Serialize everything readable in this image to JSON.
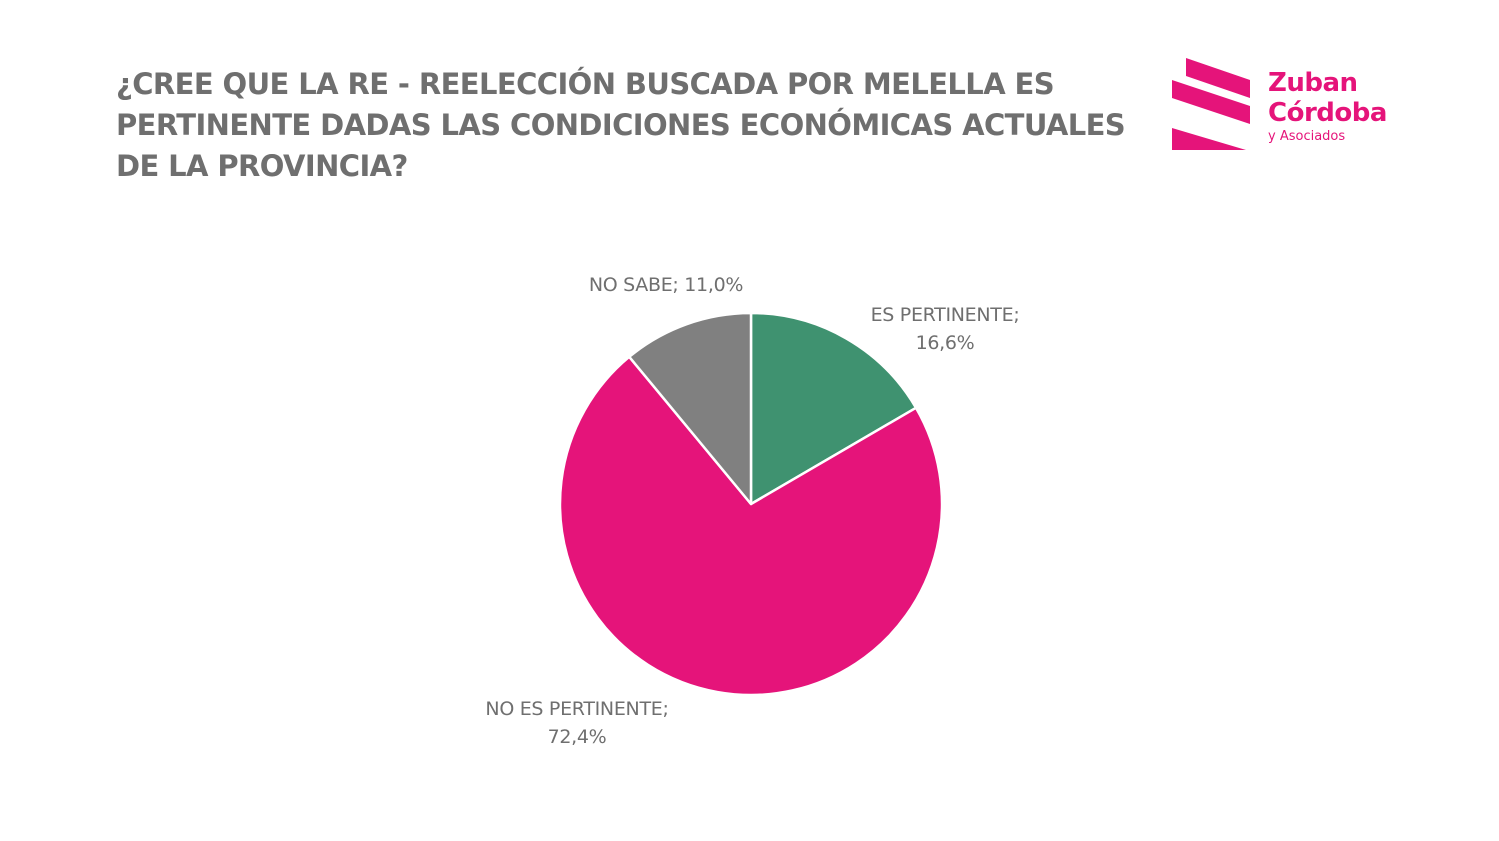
{
  "header": {
    "title": "¿CREE QUE LA RE - REELECCIÓN BUSCADA POR MELELLA ES PERTINENTE DADAS LAS CONDICIONES ECONÓMICAS ACTUALES DE LA PROVINCIA?"
  },
  "logo": {
    "line1": "Zuban",
    "line2": "Córdoba",
    "line3": "y Asociados",
    "color": "#e5147a"
  },
  "chart_data": {
    "type": "pie",
    "title": "¿CREE QUE LA RE - REELECCIÓN BUSCADA POR MELELLA ES PERTINENTE DADAS LAS CONDICIONES ECONÓMICAS ACTUALES DE LA PROVINCIA?",
    "slices": [
      {
        "category": "ES PERTINENTE",
        "value": 16.6,
        "label_lines": [
          "ES PERTINENTE;",
          "16,6%"
        ],
        "color": "#3f9270"
      },
      {
        "category": "NO ES PERTINENTE",
        "value": 72.4,
        "label_lines": [
          "NO ES PERTINENTE;",
          "72,4%"
        ],
        "color": "#e5147a"
      },
      {
        "category": "NO SABE",
        "value": 11.0,
        "label_lines": [
          "NO SABE; 11,0%"
        ],
        "color": "#808080"
      }
    ],
    "legend": "none",
    "start_angle": "12 o'clock",
    "direction": "clockwise"
  }
}
